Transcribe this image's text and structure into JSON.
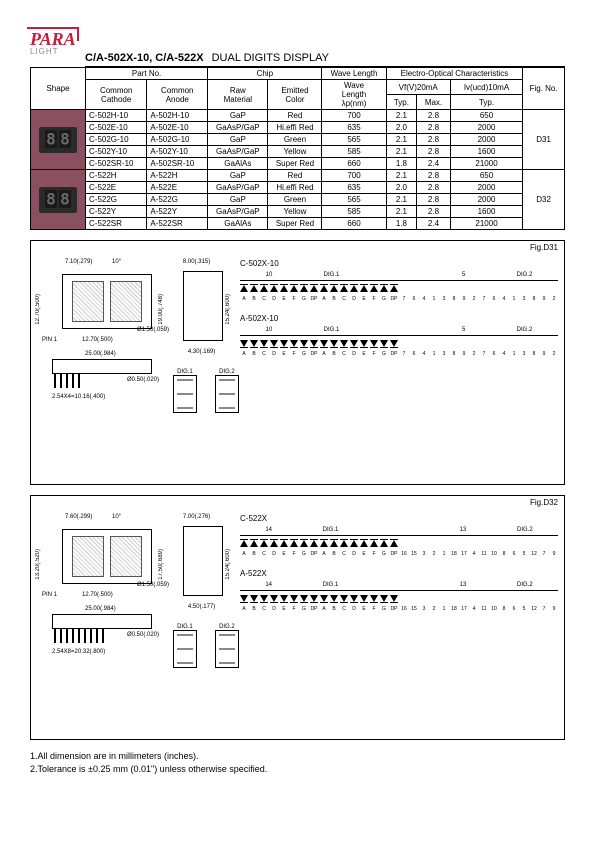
{
  "logo": {
    "main": "PARA",
    "sub": "LIGHT"
  },
  "title": {
    "part": "C/A-502X-10, C/A-522X",
    "desc": "DUAL DIGITS DISPLAY"
  },
  "table": {
    "headers": {
      "shape": "Shape",
      "partno": "Part No.",
      "cathode": "Common\nCathode",
      "anode": "Common\nAnode",
      "chip": "Chip",
      "raw": "Raw\nMaterial",
      "emitted": "Emitted\nColor",
      "wave": "Wave\nLength",
      "wave_unit": "λp(nm)",
      "electro": "Electro-Optical Characteristics",
      "vf": "Vf(V)20mA",
      "iv": "Iv(ucd)10mA",
      "typ": "Typ.",
      "max": "Max.",
      "figno": "Fig. No."
    },
    "groups": [
      {
        "fig": "D31",
        "rows": [
          {
            "cc": "C-502H-10",
            "ca": "A-502H-10",
            "raw": "GaP",
            "color": "Red",
            "wave": "700",
            "vft": "2.1",
            "vfm": "2.8",
            "iv": "650"
          },
          {
            "cc": "C-502E-10",
            "ca": "A-502E-10",
            "raw": "GaAsP/GaP",
            "color": "Hi.effi Red",
            "wave": "635",
            "vft": "2.0",
            "vfm": "2.8",
            "iv": "2000"
          },
          {
            "cc": "C-502G-10",
            "ca": "A-502G-10",
            "raw": "GaP",
            "color": "Green",
            "wave": "565",
            "vft": "2.1",
            "vfm": "2.8",
            "iv": "2000"
          },
          {
            "cc": "C-502Y-10",
            "ca": "A-502Y-10",
            "raw": "GaAsP/GaP",
            "color": "Yellow",
            "wave": "585",
            "vft": "2.1",
            "vfm": "2.8",
            "iv": "1600"
          },
          {
            "cc": "C-502SR-10",
            "ca": "A-502SR-10",
            "raw": "GaAlAs",
            "color": "Super Red",
            "wave": "660",
            "vft": "1.8",
            "vfm": "2.4",
            "iv": "21000"
          }
        ]
      },
      {
        "fig": "D32",
        "rows": [
          {
            "cc": "C-522H",
            "ca": "A-522H",
            "raw": "GaP",
            "color": "Red",
            "wave": "700",
            "vft": "2.1",
            "vfm": "2.8",
            "iv": "650"
          },
          {
            "cc": "C-522E",
            "ca": "A-522E",
            "raw": "GaAsP/GaP",
            "color": "Hi.effi Red",
            "wave": "635",
            "vft": "2.0",
            "vfm": "2.8",
            "iv": "2000"
          },
          {
            "cc": "C-522G",
            "ca": "A-522G",
            "raw": "GaP",
            "color": "Green",
            "wave": "565",
            "vft": "2.1",
            "vfm": "2.8",
            "iv": "2000"
          },
          {
            "cc": "C-522Y",
            "ca": "A-522Y",
            "raw": "GaAsP/GaP",
            "color": "Yellow",
            "wave": "585",
            "vft": "2.1",
            "vfm": "2.8",
            "iv": "1600"
          },
          {
            "cc": "C-522SR",
            "ca": "A-522SR",
            "raw": "GaAlAs",
            "color": "Super Red",
            "wave": "660",
            "vft": "1.8",
            "vfm": "2.4",
            "iv": "21000"
          }
        ]
      }
    ]
  },
  "fig31": {
    "label": "Fig.D31",
    "dims": {
      "d1": "7.10(.279)",
      "d2": "10°",
      "d3": "12.70(.500)",
      "d4": "12.70(.500)",
      "d5": "Ø1.50(.059)",
      "d6": "25.00(.984)",
      "d7": "2.54X4=10.16(.400)",
      "d8": "Ø0.50(.020)",
      "d9": "8.00(.315)",
      "d10": "19.00(.748)",
      "d11": "15.24(.600)",
      "d12": "4.30(.169)",
      "pin1": "PIN 1"
    },
    "dig1": "DIG.1",
    "dig2": "DIG.2",
    "circuit_c": "C-502X-10",
    "circuit_a": "A-502X-10",
    "pins_c": [
      "A",
      "B",
      "C",
      "D",
      "E",
      "F",
      "G",
      "DP",
      "A",
      "B",
      "C",
      "D",
      "E",
      "F",
      "G",
      "DP"
    ],
    "nums_c": [
      "7",
      "6",
      "4",
      "1",
      "3",
      "8",
      "9",
      "2",
      "7",
      "6",
      "4",
      "1",
      "3",
      "8",
      "9",
      "2"
    ],
    "top_c": [
      "10",
      "5"
    ],
    "top_a": [
      "10",
      "5"
    ]
  },
  "fig32": {
    "label": "Fig.D32",
    "dims": {
      "d1": "7.60(.299)",
      "d2": "10°",
      "d3": "13.20(.520)",
      "d4": "12.70(.500)",
      "d5": "Ø1.50(.059)",
      "d6": "25.00(.984)",
      "d7": "2.54X8=20.32(.800)",
      "d8": "Ø0.50(.020)",
      "d9": "7.00(.276)",
      "d10": "17.50(.689)",
      "d11": "15.24(.600)",
      "d12": "4.50(.177)",
      "pin1": "PIN 1"
    },
    "dig1": "DIG.1",
    "dig2": "DIG.2",
    "circuit_c": "C-522X",
    "circuit_a": "A-522X",
    "pins_c": [
      "A",
      "B",
      "C",
      "D",
      "E",
      "F",
      "G",
      "DP",
      "A",
      "B",
      "C",
      "D",
      "E",
      "F",
      "G",
      "DP"
    ],
    "nums_c": [
      "16",
      "15",
      "3",
      "2",
      "1",
      "18",
      "17",
      "4",
      "11",
      "10",
      "8",
      "6",
      "5",
      "12",
      "7",
      "9"
    ],
    "top_c": [
      "14",
      "13"
    ],
    "top_a": [
      "14",
      "13"
    ]
  },
  "notes": {
    "n1": "1.All dimension are in millimeters (inches).",
    "n2": "2.Tolerance is ±0.25 mm (0.01\") unless otherwise specified."
  }
}
